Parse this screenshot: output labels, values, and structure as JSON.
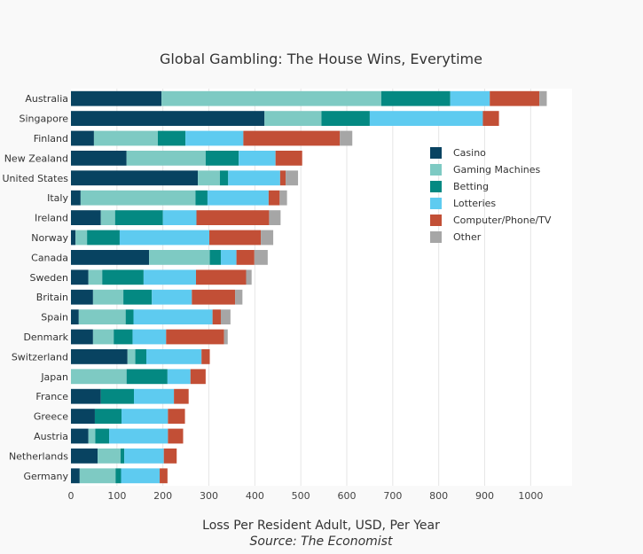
{
  "chart_data": {
    "type": "bar",
    "orientation": "horizontal",
    "stacked": true,
    "title": "Global Gambling: The House Wins, Everytime",
    "xlabel": "Loss Per Resident Adult, USD, Per Year",
    "source": "Source: The Economist",
    "xlim": [
      0,
      1090
    ],
    "xticks": [
      0,
      100,
      200,
      300,
      400,
      500,
      600,
      700,
      800,
      900,
      1000
    ],
    "grid": true,
    "legend_position": "right",
    "categories": [
      "Australia",
      "Singapore",
      "Finland",
      "New Zealand",
      "United States",
      "Italy",
      "Ireland",
      "Norway",
      "Canada",
      "Sweden",
      "Britain",
      "Spain",
      "Denmark",
      "Switzerland",
      "Japan",
      "France",
      "Greece",
      "Austria",
      "Netherlands",
      "Germany"
    ],
    "series": [
      {
        "name": "Casino",
        "color": "#084361",
        "values": [
          197,
          421,
          50,
          121,
          276,
          21,
          65,
          10,
          170,
          38,
          48,
          17,
          48,
          123,
          0,
          65,
          52,
          38,
          58,
          19
        ]
      },
      {
        "name": "Gaming Machines",
        "color": "#7ecac3",
        "values": [
          478,
          124,
          139,
          172,
          48,
          250,
          31,
          25,
          132,
          30,
          66,
          102,
          45,
          17,
          121,
          0,
          0,
          15,
          50,
          78
        ]
      },
      {
        "name": "Betting",
        "color": "#048982",
        "values": [
          150,
          105,
          60,
          72,
          18,
          26,
          104,
          71,
          24,
          90,
          62,
          17,
          41,
          24,
          89,
          72,
          58,
          30,
          8,
          12
        ]
      },
      {
        "name": "Lotteries",
        "color": "#5ecbf0",
        "values": [
          86,
          246,
          126,
          80,
          113,
          133,
          73,
          195,
          34,
          114,
          87,
          172,
          73,
          120,
          50,
          87,
          101,
          128,
          86,
          84
        ]
      },
      {
        "name": "Computer/Phone/TV",
        "color": "#c24f36",
        "values": [
          108,
          35,
          210,
          58,
          12,
          24,
          158,
          112,
          39,
          109,
          94,
          18,
          126,
          18,
          33,
          32,
          37,
          33,
          28,
          17
        ]
      },
      {
        "name": "Other",
        "color": "#a6a6a6",
        "values": [
          16,
          0,
          27,
          0,
          27,
          16,
          25,
          27,
          29,
          12,
          16,
          21,
          8,
          0,
          0,
          0,
          0,
          0,
          0,
          0
        ]
      }
    ]
  }
}
